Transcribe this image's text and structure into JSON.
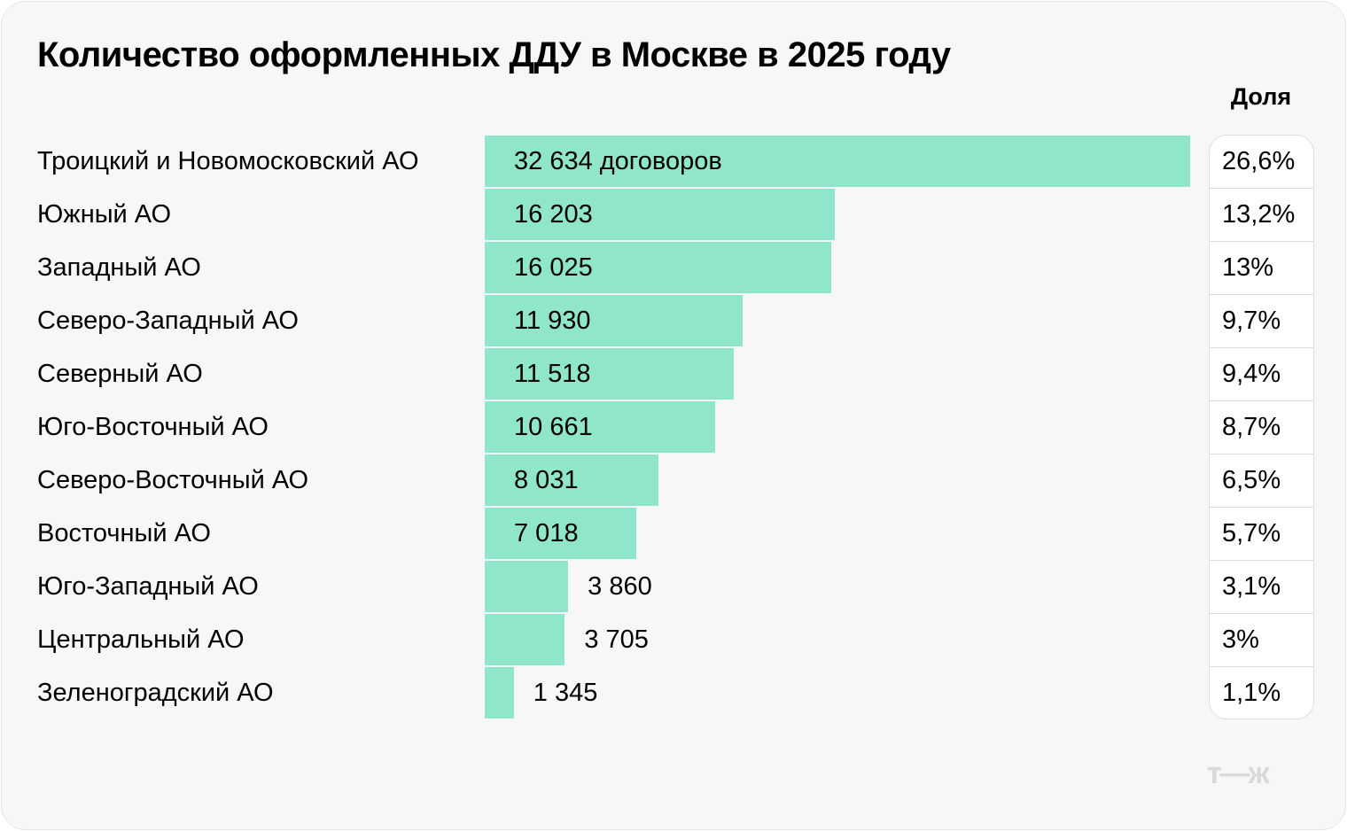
{
  "chart_data": {
    "type": "bar",
    "orientation": "horizontal",
    "title": "Количество оформленных ДДУ в Москве в 2025 году",
    "categories": [
      "Троицкий и Новомосковский АО",
      "Южный АО",
      "Западный АО",
      "Северо-Западный АО",
      "Северный АО",
      "Юго-Восточный АО",
      "Северо-Восточный АО",
      "Восточный АО",
      "Юго-Западный АО",
      "Центральный АО",
      "Зеленоградский АО"
    ],
    "values": [
      32634,
      16203,
      16025,
      11930,
      11518,
      10661,
      8031,
      7018,
      3860,
      3705,
      1345
    ],
    "value_labels": [
      "32 634 договоров",
      "16 203",
      "16 025",
      "11 930",
      "11 518",
      "10 661",
      "8 031",
      "7 018",
      "3 860",
      "3 705",
      "1 345"
    ],
    "share_header": "Доля",
    "shares": [
      "26,6%",
      "13,2%",
      "13%",
      "9,7%",
      "9,4%",
      "8,7%",
      "6,5%",
      "5,7%",
      "3,1%",
      "3%",
      "1,1%"
    ],
    "bar_color": "#90e6cb",
    "grid": false
  },
  "logo": "т—ж"
}
